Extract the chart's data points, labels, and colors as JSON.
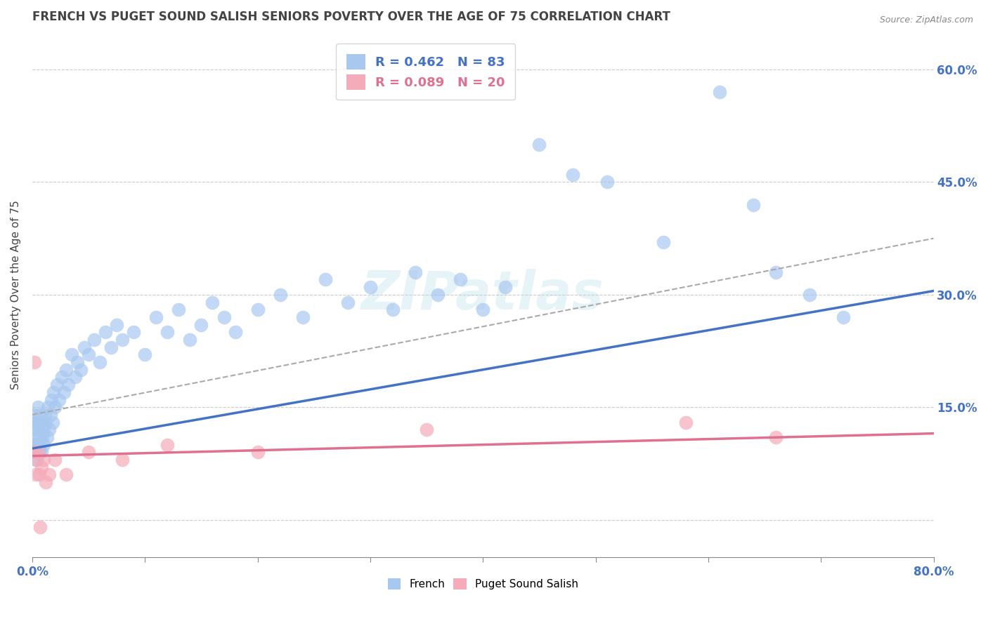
{
  "title": "FRENCH VS PUGET SOUND SALISH SENIORS POVERTY OVER THE AGE OF 75 CORRELATION CHART",
  "source": "Source: ZipAtlas.com",
  "ylabel": "Seniors Poverty Over the Age of 75",
  "xlim": [
    0.0,
    0.8
  ],
  "ylim": [
    -0.05,
    0.65
  ],
  "xtick_positions": [
    0.0,
    0.1,
    0.2,
    0.3,
    0.4,
    0.5,
    0.6,
    0.7,
    0.8
  ],
  "xticklabels": [
    "0.0%",
    "",
    "",
    "",
    "",
    "",
    "",
    "",
    "80.0%"
  ],
  "ytick_positions": [
    0.0,
    0.15,
    0.3,
    0.45,
    0.6
  ],
  "yticklabels_right": [
    "",
    "15.0%",
    "30.0%",
    "45.0%",
    "60.0%"
  ],
  "french_R": 0.462,
  "french_N": 83,
  "pss_R": 0.089,
  "pss_N": 20,
  "french_color": "#A8C8F0",
  "pss_color": "#F4ABBA",
  "french_line_color": "#4472C4",
  "pss_line_color": "#E07090",
  "dashed_line_color": "#AAAAAA",
  "background_color": "#FFFFFF",
  "grid_color": "#CCCCCC",
  "title_color": "#444444",
  "watermark": "ZIPatlas",
  "french_line_x0": 0.0,
  "french_line_y0": 0.095,
  "french_line_x1": 0.8,
  "french_line_y1": 0.305,
  "pss_line_x0": 0.0,
  "pss_line_y0": 0.085,
  "pss_line_x1": 0.8,
  "pss_line_y1": 0.115,
  "dash_line_x0": 0.0,
  "dash_line_y0": 0.14,
  "dash_line_x1": 0.8,
  "dash_line_y1": 0.375,
  "french_x": [
    0.001,
    0.001,
    0.002,
    0.002,
    0.003,
    0.003,
    0.003,
    0.004,
    0.004,
    0.004,
    0.005,
    0.005,
    0.005,
    0.006,
    0.006,
    0.006,
    0.007,
    0.007,
    0.008,
    0.008,
    0.009,
    0.009,
    0.01,
    0.01,
    0.011,
    0.012,
    0.013,
    0.014,
    0.015,
    0.016,
    0.017,
    0.018,
    0.019,
    0.02,
    0.022,
    0.024,
    0.026,
    0.028,
    0.03,
    0.032,
    0.035,
    0.038,
    0.04,
    0.043,
    0.046,
    0.05,
    0.055,
    0.06,
    0.065,
    0.07,
    0.075,
    0.08,
    0.09,
    0.1,
    0.11,
    0.12,
    0.13,
    0.14,
    0.15,
    0.16,
    0.17,
    0.18,
    0.2,
    0.22,
    0.24,
    0.26,
    0.28,
    0.3,
    0.32,
    0.34,
    0.36,
    0.38,
    0.4,
    0.42,
    0.45,
    0.48,
    0.51,
    0.56,
    0.61,
    0.64,
    0.66,
    0.69,
    0.72
  ],
  "french_y": [
    0.1,
    0.14,
    0.09,
    0.13,
    0.1,
    0.12,
    0.08,
    0.11,
    0.13,
    0.09,
    0.1,
    0.12,
    0.15,
    0.09,
    0.11,
    0.13,
    0.1,
    0.14,
    0.12,
    0.09,
    0.13,
    0.11,
    0.1,
    0.12,
    0.14,
    0.13,
    0.11,
    0.15,
    0.12,
    0.14,
    0.16,
    0.13,
    0.17,
    0.15,
    0.18,
    0.16,
    0.19,
    0.17,
    0.2,
    0.18,
    0.22,
    0.19,
    0.21,
    0.2,
    0.23,
    0.22,
    0.24,
    0.21,
    0.25,
    0.23,
    0.26,
    0.24,
    0.25,
    0.22,
    0.27,
    0.25,
    0.28,
    0.24,
    0.26,
    0.29,
    0.27,
    0.25,
    0.28,
    0.3,
    0.27,
    0.32,
    0.29,
    0.31,
    0.28,
    0.33,
    0.3,
    0.32,
    0.28,
    0.31,
    0.5,
    0.46,
    0.45,
    0.37,
    0.57,
    0.42,
    0.33,
    0.3,
    0.27
  ],
  "pss_x": [
    0.001,
    0.002,
    0.003,
    0.004,
    0.005,
    0.006,
    0.007,
    0.008,
    0.01,
    0.012,
    0.015,
    0.02,
    0.03,
    0.05,
    0.08,
    0.12,
    0.2,
    0.35,
    0.58,
    0.66
  ],
  "pss_y": [
    0.09,
    0.21,
    0.06,
    0.08,
    0.09,
    0.06,
    -0.01,
    0.07,
    0.08,
    0.05,
    0.06,
    0.08,
    0.06,
    0.09,
    0.08,
    0.1,
    0.09,
    0.12,
    0.13,
    0.11
  ]
}
